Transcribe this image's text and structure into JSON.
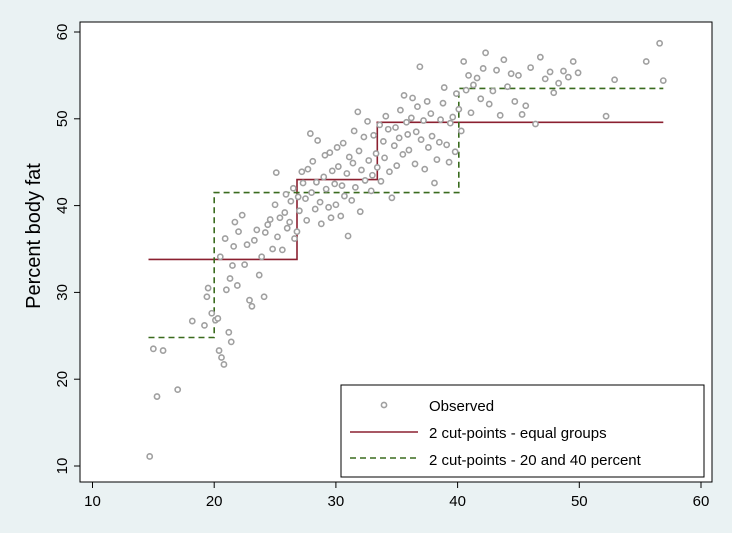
{
  "chart_data": {
    "type": "scatter",
    "title": "",
    "xlabel": "",
    "ylabel": "Percent body fat",
    "xlim": [
      10,
      60
    ],
    "ylim": [
      10,
      60
    ],
    "xticks": [
      10,
      20,
      30,
      40,
      50,
      60
    ],
    "yticks": [
      10,
      20,
      30,
      40,
      50,
      60
    ],
    "grid": false,
    "legend_position": "bottom-right",
    "colors": {
      "observed": "#a0a0a0",
      "equal_groups": "#8b2030",
      "percent_cuts": "#3a6b1e"
    },
    "legend": [
      "Observed",
      "2 cut-points - equal groups",
      "2 cut-points - 20 and 40 percent"
    ],
    "series": [
      {
        "name": "Observed",
        "kind": "scatter",
        "points": [
          [
            14.7,
            11.1
          ],
          [
            15.3,
            18.0
          ],
          [
            17.0,
            18.8
          ],
          [
            15.0,
            23.5
          ],
          [
            15.8,
            23.3
          ],
          [
            18.2,
            26.7
          ],
          [
            19.2,
            26.2
          ],
          [
            19.4,
            29.5
          ],
          [
            19.5,
            30.5
          ],
          [
            19.8,
            27.6
          ],
          [
            20.1,
            26.8
          ],
          [
            20.3,
            27.0
          ],
          [
            20.4,
            23.3
          ],
          [
            20.6,
            22.5
          ],
          [
            20.8,
            21.7
          ],
          [
            20.5,
            34.1
          ],
          [
            20.9,
            36.2
          ],
          [
            21.0,
            30.3
          ],
          [
            21.3,
            31.6
          ],
          [
            21.5,
            33.1
          ],
          [
            21.6,
            35.3
          ],
          [
            21.2,
            25.4
          ],
          [
            21.4,
            24.3
          ],
          [
            21.7,
            38.1
          ],
          [
            21.9,
            30.8
          ],
          [
            22.0,
            37.0
          ],
          [
            22.3,
            38.9
          ],
          [
            22.5,
            33.2
          ],
          [
            22.7,
            35.5
          ],
          [
            22.9,
            29.1
          ],
          [
            23.1,
            28.4
          ],
          [
            23.3,
            36.0
          ],
          [
            23.5,
            37.2
          ],
          [
            23.7,
            32.0
          ],
          [
            23.9,
            34.1
          ],
          [
            24.1,
            29.5
          ],
          [
            24.2,
            36.9
          ],
          [
            24.4,
            37.8
          ],
          [
            24.6,
            38.4
          ],
          [
            24.8,
            35.0
          ],
          [
            25.0,
            40.1
          ],
          [
            25.1,
            43.8
          ],
          [
            25.2,
            36.4
          ],
          [
            25.4,
            38.6
          ],
          [
            25.6,
            34.9
          ],
          [
            25.8,
            39.2
          ],
          [
            25.9,
            41.3
          ],
          [
            26.0,
            37.4
          ],
          [
            26.2,
            38.1
          ],
          [
            26.3,
            40.5
          ],
          [
            26.5,
            42.0
          ],
          [
            26.6,
            36.2
          ],
          [
            26.8,
            37.0
          ],
          [
            26.9,
            41.0
          ],
          [
            27.0,
            39.4
          ],
          [
            27.2,
            43.9
          ],
          [
            27.3,
            42.6
          ],
          [
            27.5,
            40.8
          ],
          [
            27.6,
            38.3
          ],
          [
            27.7,
            44.2
          ],
          [
            27.9,
            48.3
          ],
          [
            28.0,
            41.5
          ],
          [
            28.1,
            45.1
          ],
          [
            28.3,
            39.6
          ],
          [
            28.4,
            42.7
          ],
          [
            28.5,
            47.5
          ],
          [
            28.7,
            40.4
          ],
          [
            28.8,
            37.9
          ],
          [
            29.0,
            43.3
          ],
          [
            29.1,
            45.8
          ],
          [
            29.2,
            41.9
          ],
          [
            29.4,
            39.8
          ],
          [
            29.5,
            46.1
          ],
          [
            29.6,
            38.6
          ],
          [
            29.7,
            44.0
          ],
          [
            29.9,
            42.5
          ],
          [
            30.0,
            40.1
          ],
          [
            30.1,
            46.7
          ],
          [
            30.2,
            44.5
          ],
          [
            30.4,
            38.8
          ],
          [
            30.5,
            42.3
          ],
          [
            30.6,
            47.2
          ],
          [
            30.7,
            41.1
          ],
          [
            30.9,
            43.7
          ],
          [
            31.0,
            36.5
          ],
          [
            31.1,
            45.6
          ],
          [
            31.3,
            40.6
          ],
          [
            31.4,
            44.9
          ],
          [
            31.5,
            48.6
          ],
          [
            31.6,
            42.1
          ],
          [
            31.8,
            50.8
          ],
          [
            31.9,
            46.3
          ],
          [
            32.0,
            39.3
          ],
          [
            32.1,
            44.1
          ],
          [
            32.3,
            47.9
          ],
          [
            32.4,
            42.9
          ],
          [
            32.6,
            49.7
          ],
          [
            32.7,
            45.2
          ],
          [
            32.9,
            41.7
          ],
          [
            33.0,
            43.5
          ],
          [
            33.1,
            48.1
          ],
          [
            33.3,
            46.0
          ],
          [
            33.4,
            44.4
          ],
          [
            33.6,
            49.3
          ],
          [
            33.7,
            42.8
          ],
          [
            33.9,
            47.4
          ],
          [
            34.0,
            45.5
          ],
          [
            34.1,
            50.3
          ],
          [
            34.3,
            48.8
          ],
          [
            34.4,
            43.9
          ],
          [
            34.6,
            40.9
          ],
          [
            34.8,
            46.9
          ],
          [
            34.9,
            49.0
          ],
          [
            35.0,
            44.6
          ],
          [
            35.2,
            47.8
          ],
          [
            35.3,
            51.0
          ],
          [
            35.5,
            45.9
          ],
          [
            35.6,
            52.7
          ],
          [
            35.8,
            49.6
          ],
          [
            35.9,
            48.2
          ],
          [
            36.0,
            46.4
          ],
          [
            36.2,
            50.1
          ],
          [
            36.3,
            52.4
          ],
          [
            36.5,
            44.8
          ],
          [
            36.6,
            48.5
          ],
          [
            36.7,
            51.4
          ],
          [
            36.9,
            56.0
          ],
          [
            37.0,
            47.6
          ],
          [
            37.2,
            49.8
          ],
          [
            37.3,
            44.2
          ],
          [
            37.5,
            52.0
          ],
          [
            37.6,
            46.7
          ],
          [
            37.8,
            50.6
          ],
          [
            37.9,
            48.0
          ],
          [
            38.1,
            42.6
          ],
          [
            38.3,
            45.3
          ],
          [
            38.5,
            47.3
          ],
          [
            38.6,
            49.9
          ],
          [
            38.8,
            51.8
          ],
          [
            38.9,
            53.6
          ],
          [
            39.1,
            47.0
          ],
          [
            39.3,
            45.0
          ],
          [
            39.4,
            49.5
          ],
          [
            39.6,
            50.2
          ],
          [
            39.8,
            46.2
          ],
          [
            39.9,
            52.9
          ],
          [
            40.1,
            51.1
          ],
          [
            40.3,
            48.6
          ],
          [
            40.5,
            56.6
          ],
          [
            40.7,
            53.3
          ],
          [
            40.9,
            55.0
          ],
          [
            41.1,
            50.7
          ],
          [
            41.3,
            53.9
          ],
          [
            41.6,
            54.7
          ],
          [
            41.9,
            52.3
          ],
          [
            42.1,
            55.8
          ],
          [
            42.3,
            57.6
          ],
          [
            42.6,
            51.7
          ],
          [
            42.9,
            53.2
          ],
          [
            43.2,
            55.6
          ],
          [
            43.5,
            50.4
          ],
          [
            43.8,
            56.8
          ],
          [
            44.1,
            53.7
          ],
          [
            44.4,
            55.2
          ],
          [
            44.7,
            52.0
          ],
          [
            45.0,
            55.0
          ],
          [
            45.3,
            50.5
          ],
          [
            45.6,
            51.5
          ],
          [
            46.0,
            55.9
          ],
          [
            46.4,
            49.4
          ],
          [
            46.8,
            57.1
          ],
          [
            47.2,
            54.6
          ],
          [
            47.6,
            55.4
          ],
          [
            47.9,
            53.0
          ],
          [
            48.3,
            54.1
          ],
          [
            48.7,
            55.5
          ],
          [
            49.1,
            54.8
          ],
          [
            49.5,
            56.6
          ],
          [
            49.9,
            55.3
          ],
          [
            52.2,
            50.3
          ],
          [
            52.9,
            54.5
          ],
          [
            55.5,
            56.6
          ],
          [
            56.6,
            58.7
          ],
          [
            56.9,
            54.4
          ]
        ]
      },
      {
        "name": "2 cut-points - equal groups",
        "kind": "step",
        "points": [
          [
            14.6,
            33.8
          ],
          [
            26.8,
            33.8
          ],
          [
            26.8,
            43.0
          ],
          [
            33.4,
            43.0
          ],
          [
            33.4,
            49.6
          ],
          [
            56.9,
            49.6
          ]
        ]
      },
      {
        "name": "2 cut-points - 20 and 40 percent",
        "kind": "step",
        "points": [
          [
            14.6,
            24.8
          ],
          [
            20.0,
            24.8
          ],
          [
            20.0,
            41.5
          ],
          [
            40.1,
            41.5
          ],
          [
            40.1,
            53.5
          ],
          [
            56.9,
            53.5
          ]
        ]
      }
    ]
  }
}
